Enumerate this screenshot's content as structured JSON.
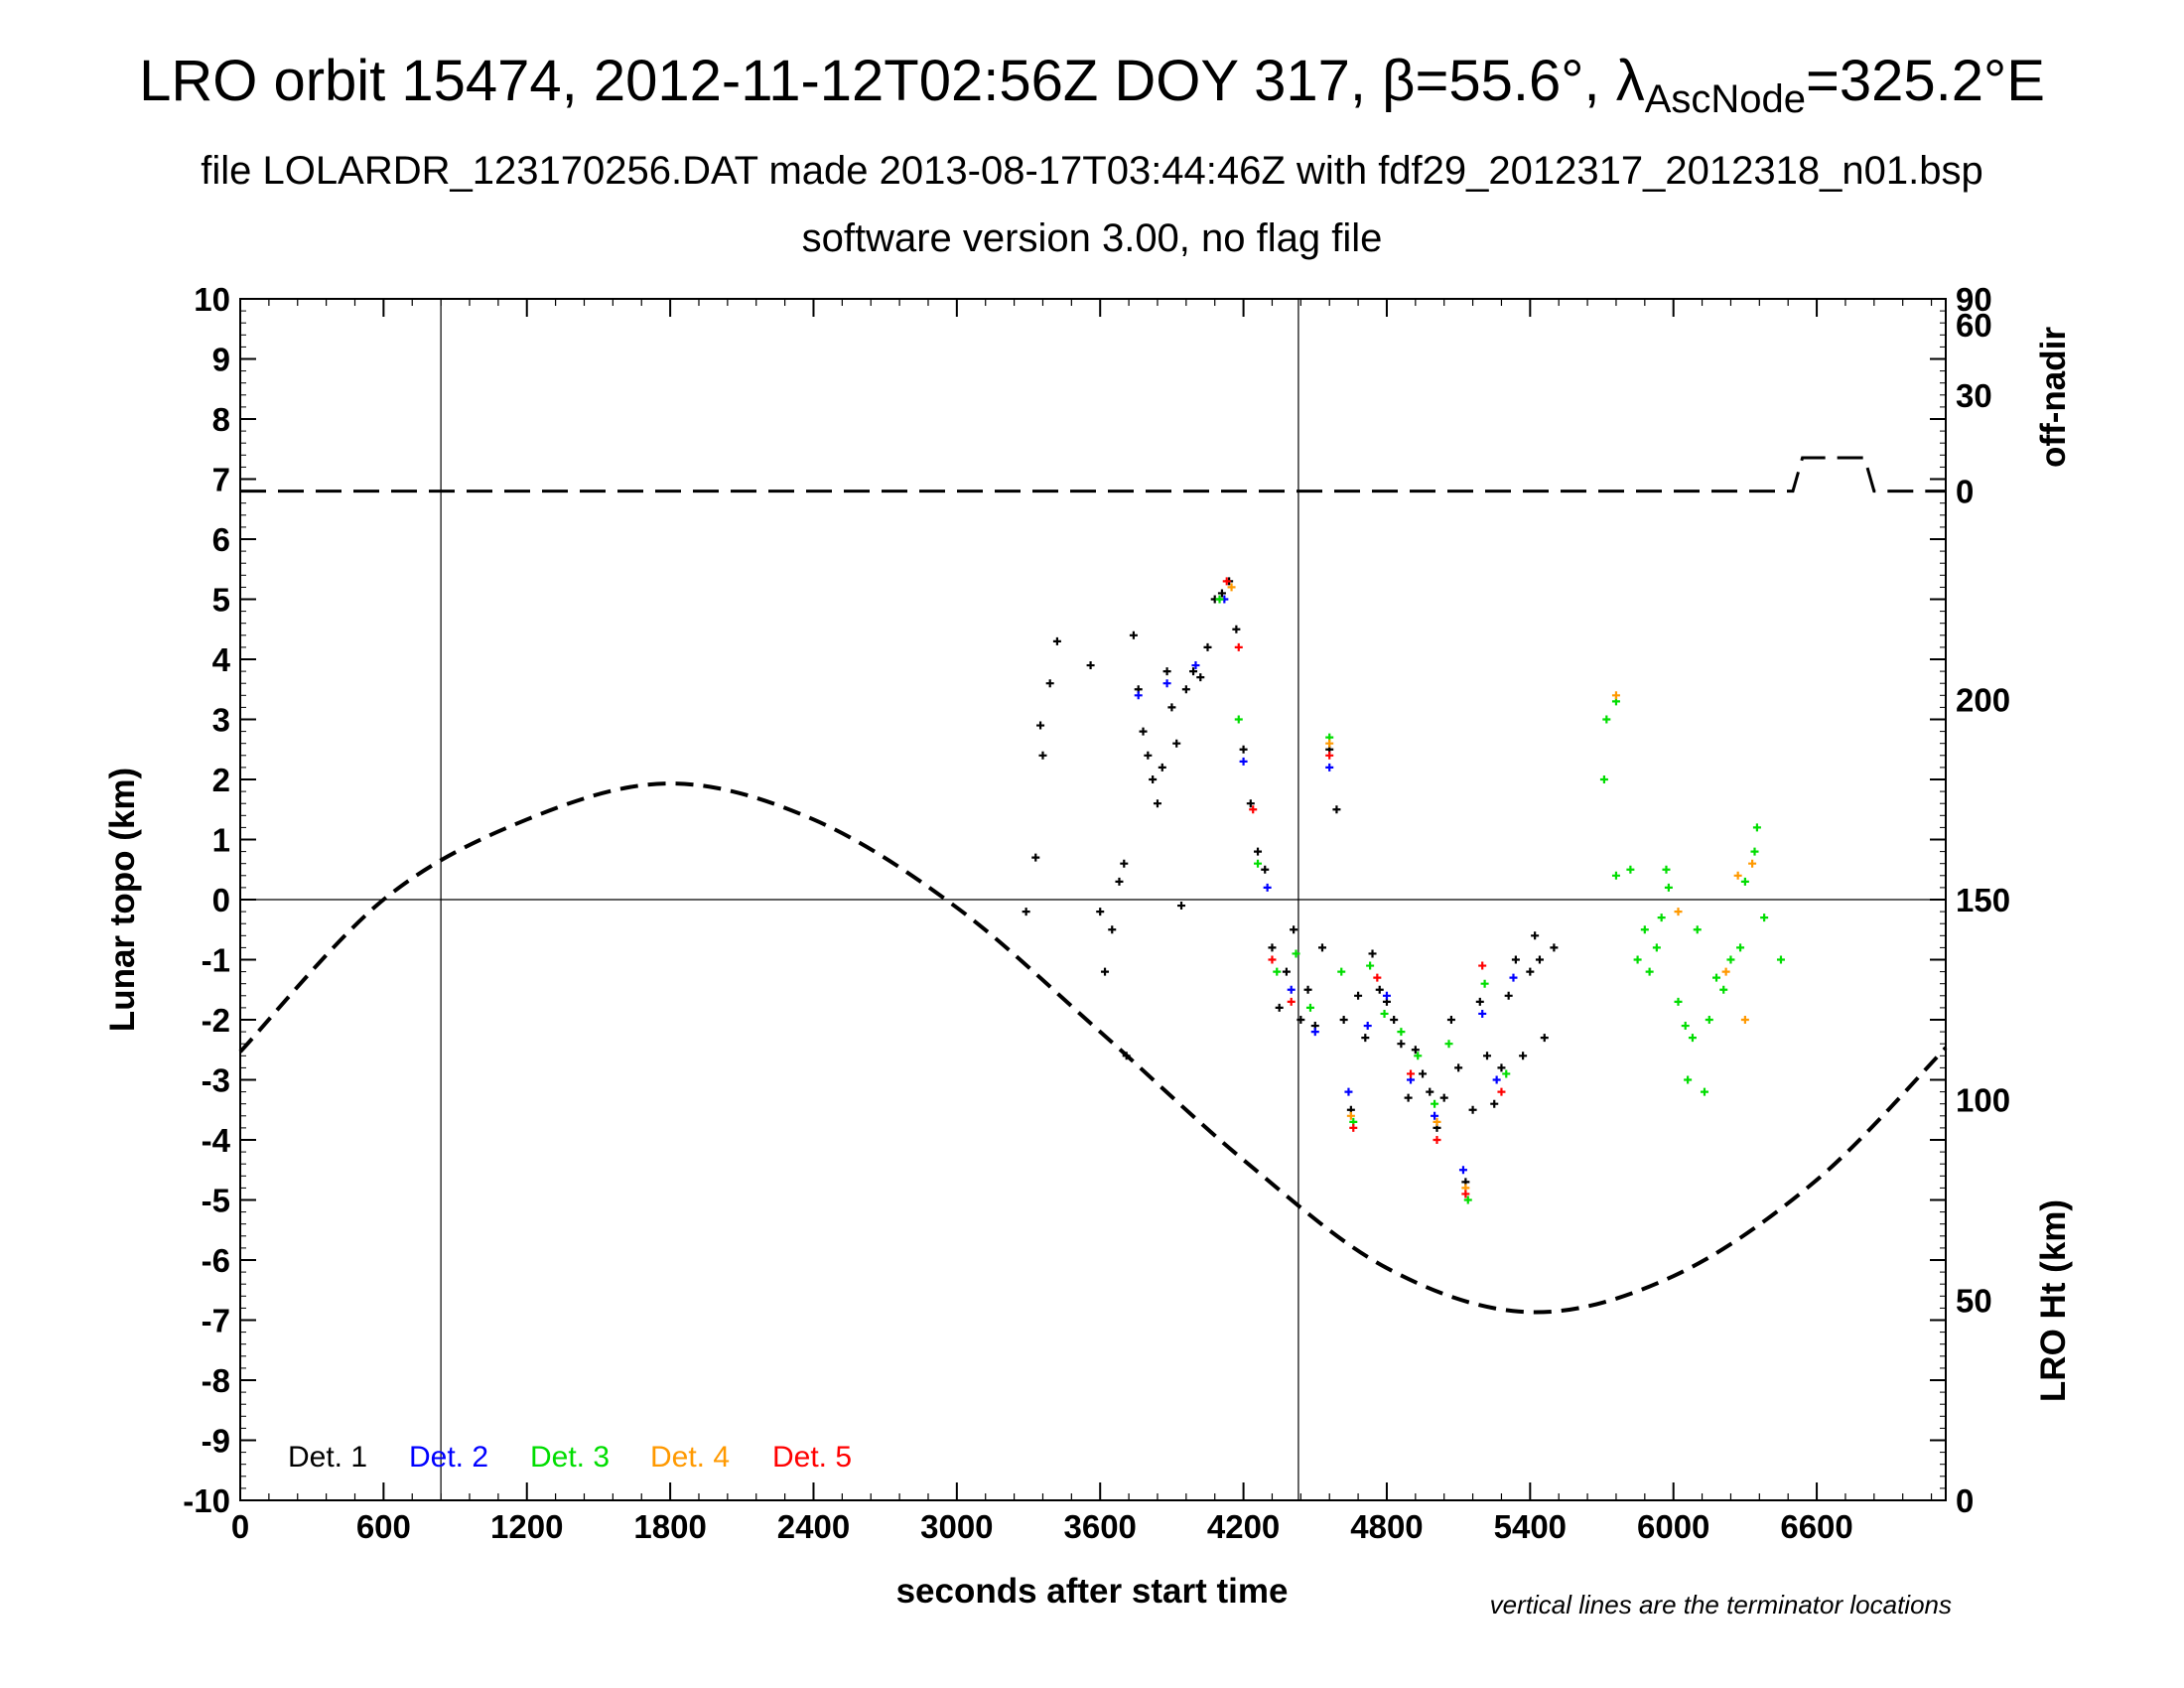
{
  "title": {
    "line1_prefix": "LRO orbit 15474, 2012-11-12T02:56Z DOY 317, β=55.6°, λ",
    "line1_sub": "AscNode",
    "line1_suffix": "=325.2°E",
    "line2": "file LOLARDR_123170256.DAT made 2013-08-17T03:44:46Z with fdf29_2012317_2012318_n01.bsp",
    "line3": "software version 3.00, no flag file"
  },
  "chart_data": {
    "type": "scatter",
    "xlabel": "seconds after start time",
    "ylabel": "Lunar topo (km)",
    "xlim": [
      0,
      7140
    ],
    "ylim": [
      -10,
      10
    ],
    "x_ticks": [
      "0",
      "600",
      "1200",
      "1800",
      "2400",
      "3000",
      "3600",
      "4200",
      "4800",
      "5400",
      "6000",
      "6600"
    ],
    "y_ticks": [
      "10",
      "9",
      "8",
      "7",
      "6",
      "5",
      "4",
      "3",
      "2",
      "1",
      "0",
      "-1",
      "-2",
      "-3",
      "-4",
      "-5",
      "-6",
      "-7",
      "-8",
      "-9",
      "-10"
    ],
    "right_axis_top": {
      "label": "off-nadir",
      "ticks": [
        "90",
        "60",
        "30",
        "0"
      ]
    },
    "right_axis_bottom": {
      "label": "LRO Ht (km)",
      "ticks": [
        "200",
        "150",
        "100",
        "50",
        "0"
      ],
      "range": [
        0,
        300
      ]
    },
    "terminator_lines_x": [
      840,
      4430
    ],
    "note": "vertical lines are the terminator locations",
    "legend_position": "bottom-left",
    "legend": [
      {
        "name": "Det. 1",
        "color": "#000000"
      },
      {
        "name": "Det. 2",
        "color": "#0000ff"
      },
      {
        "name": "Det. 3",
        "color": "#00dd00"
      },
      {
        "name": "Det. 4",
        "color": "#ff9900"
      },
      {
        "name": "Det. 5",
        "color": "#ff0000"
      }
    ],
    "series": [
      {
        "name": "Det. 1",
        "values_xy": [
          [
            3290,
            -0.2
          ],
          [
            3330,
            0.7
          ],
          [
            3350,
            2.9
          ],
          [
            3360,
            2.4
          ],
          [
            3390,
            3.6
          ],
          [
            3420,
            4.3
          ],
          [
            3560,
            3.9
          ],
          [
            3600,
            -0.2
          ],
          [
            3620,
            -1.2
          ],
          [
            3650,
            -0.5
          ],
          [
            3680,
            0.3
          ],
          [
            3700,
            0.6
          ],
          [
            3710,
            -2.6
          ],
          [
            3740,
            4.4
          ],
          [
            3760,
            3.5
          ],
          [
            3780,
            2.8
          ],
          [
            3800,
            2.4
          ],
          [
            3820,
            2.0
          ],
          [
            3840,
            1.6
          ],
          [
            3860,
            2.2
          ],
          [
            3880,
            3.8
          ],
          [
            3900,
            3.2
          ],
          [
            3920,
            2.6
          ],
          [
            3940,
            -0.1
          ],
          [
            3960,
            3.5
          ],
          [
            3990,
            3.8
          ],
          [
            4020,
            3.7
          ],
          [
            4050,
            4.2
          ],
          [
            4080,
            5.0
          ],
          [
            4110,
            5.1
          ],
          [
            4140,
            5.3
          ],
          [
            4170,
            4.5
          ],
          [
            4200,
            2.5
          ],
          [
            4230,
            1.6
          ],
          [
            4260,
            0.8
          ],
          [
            4290,
            0.5
          ],
          [
            4320,
            -0.8
          ],
          [
            4350,
            -1.8
          ],
          [
            4380,
            -1.2
          ],
          [
            4410,
            -0.5
          ],
          [
            4440,
            -2.0
          ],
          [
            4470,
            -1.5
          ],
          [
            4500,
            -2.1
          ],
          [
            4530,
            -0.8
          ],
          [
            4560,
            2.5
          ],
          [
            4590,
            1.5
          ],
          [
            4620,
            -2.0
          ],
          [
            4650,
            -3.5
          ],
          [
            4680,
            -1.6
          ],
          [
            4710,
            -2.3
          ],
          [
            4740,
            -0.9
          ],
          [
            4770,
            -1.5
          ],
          [
            4800,
            -1.7
          ],
          [
            4830,
            -2.0
          ],
          [
            4860,
            -2.4
          ],
          [
            4890,
            -3.3
          ],
          [
            4920,
            -2.5
          ],
          [
            4950,
            -2.9
          ],
          [
            4980,
            -3.2
          ],
          [
            5010,
            -3.8
          ],
          [
            5040,
            -3.3
          ],
          [
            5070,
            -2.0
          ],
          [
            5100,
            -2.8
          ],
          [
            5130,
            -4.7
          ],
          [
            5160,
            -3.5
          ],
          [
            5190,
            -1.7
          ],
          [
            5220,
            -2.6
          ],
          [
            5250,
            -3.4
          ],
          [
            5280,
            -2.8
          ],
          [
            5310,
            -1.6
          ],
          [
            5340,
            -1.0
          ],
          [
            5370,
            -2.6
          ],
          [
            5400,
            -1.2
          ],
          [
            5420,
            -0.6
          ],
          [
            5440,
            -1.0
          ],
          [
            5460,
            -2.3
          ],
          [
            5500,
            -0.8
          ]
        ]
      },
      {
        "name": "Det. 2",
        "values_xy": [
          [
            3760,
            3.4
          ],
          [
            3880,
            3.6
          ],
          [
            4000,
            3.9
          ],
          [
            4120,
            5.0
          ],
          [
            4200,
            2.3
          ],
          [
            4300,
            0.2
          ],
          [
            4400,
            -1.5
          ],
          [
            4500,
            -2.2
          ],
          [
            4560,
            2.2
          ],
          [
            4640,
            -3.2
          ],
          [
            4720,
            -2.1
          ],
          [
            4800,
            -1.6
          ],
          [
            4900,
            -3.0
          ],
          [
            5000,
            -3.6
          ],
          [
            5120,
            -4.5
          ],
          [
            5200,
            -1.9
          ],
          [
            5260,
            -3.0
          ],
          [
            5330,
            -1.3
          ]
        ]
      },
      {
        "name": "Det. 3",
        "values_xy": [
          [
            4100,
            5.0
          ],
          [
            4180,
            3.0
          ],
          [
            4260,
            0.6
          ],
          [
            4340,
            -1.2
          ],
          [
            4420,
            -0.9
          ],
          [
            4480,
            -1.8
          ],
          [
            4560,
            2.7
          ],
          [
            4610,
            -1.2
          ],
          [
            4660,
            -3.7
          ],
          [
            4730,
            -1.1
          ],
          [
            4790,
            -1.9
          ],
          [
            4860,
            -2.2
          ],
          [
            4930,
            -2.6
          ],
          [
            5000,
            -3.4
          ],
          [
            5060,
            -2.4
          ],
          [
            5140,
            -5.0
          ],
          [
            5210,
            -1.4
          ],
          [
            5300,
            -2.9
          ],
          [
            5710,
            2.0
          ],
          [
            5720,
            3.0
          ],
          [
            5760,
            3.3
          ],
          [
            5760,
            0.4
          ],
          [
            5820,
            0.5
          ],
          [
            5850,
            -1.0
          ],
          [
            5880,
            -0.5
          ],
          [
            5900,
            -1.2
          ],
          [
            5930,
            -0.8
          ],
          [
            5950,
            -0.3
          ],
          [
            5970,
            0.5
          ],
          [
            5980,
            0.2
          ],
          [
            6020,
            -1.7
          ],
          [
            6050,
            -2.1
          ],
          [
            6060,
            -3.0
          ],
          [
            6080,
            -2.3
          ],
          [
            6100,
            -0.5
          ],
          [
            6130,
            -3.2
          ],
          [
            6150,
            -2.0
          ],
          [
            6180,
            -1.3
          ],
          [
            6210,
            -1.5
          ],
          [
            6240,
            -1.0
          ],
          [
            6280,
            -0.8
          ],
          [
            6300,
            0.3
          ],
          [
            6340,
            0.8
          ],
          [
            6350,
            1.2
          ],
          [
            6380,
            -0.3
          ],
          [
            6450,
            -1.0
          ]
        ]
      },
      {
        "name": "Det. 4",
        "values_xy": [
          [
            4150,
            5.2
          ],
          [
            4560,
            2.6
          ],
          [
            4650,
            -3.6
          ],
          [
            5010,
            -3.7
          ],
          [
            5130,
            -4.8
          ],
          [
            5760,
            3.4
          ],
          [
            6020,
            -0.2
          ],
          [
            6220,
            -1.2
          ],
          [
            6270,
            0.4
          ],
          [
            6300,
            -2.0
          ],
          [
            6330,
            0.6
          ]
        ]
      },
      {
        "name": "Det. 5",
        "values_xy": [
          [
            4130,
            5.3
          ],
          [
            4180,
            4.2
          ],
          [
            4240,
            1.5
          ],
          [
            4320,
            -1.0
          ],
          [
            4400,
            -1.7
          ],
          [
            4560,
            2.4
          ],
          [
            4660,
            -3.8
          ],
          [
            4760,
            -1.3
          ],
          [
            4900,
            -2.9
          ],
          [
            5010,
            -4.0
          ],
          [
            5130,
            -4.9
          ],
          [
            5200,
            -1.1
          ],
          [
            5280,
            -3.2
          ]
        ]
      }
    ],
    "off_nadir_deg": [
      [
        0,
        0
      ],
      [
        6500,
        0
      ],
      [
        6540,
        10
      ],
      [
        6800,
        10
      ],
      [
        6840,
        0
      ],
      [
        7140,
        0
      ]
    ],
    "lro_height_km": [
      [
        0,
        112
      ],
      [
        600,
        150
      ],
      [
        1200,
        170
      ],
      [
        1800,
        179
      ],
      [
        2400,
        170
      ],
      [
        3000,
        148
      ],
      [
        3600,
        117
      ],
      [
        4200,
        85
      ],
      [
        4800,
        58
      ],
      [
        5400,
        47
      ],
      [
        6000,
        56
      ],
      [
        6600,
        80
      ],
      [
        7140,
        113
      ]
    ]
  }
}
